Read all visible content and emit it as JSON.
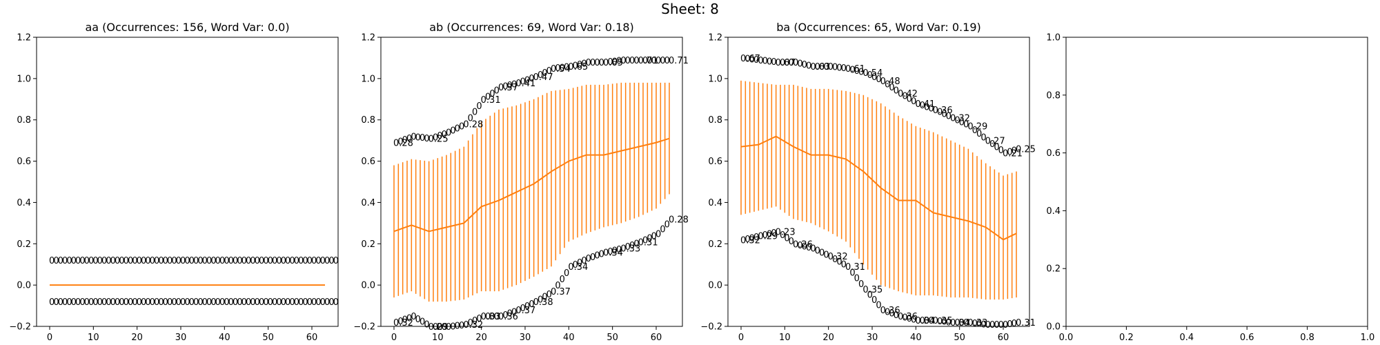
{
  "figure": {
    "title": "Sheet: 8"
  },
  "chart_data": [
    {
      "type": "line",
      "title": "aa (Occurrences: 156, Word Var: 0.0)",
      "xlim": [
        -3,
        66
      ],
      "ylim": [
        -0.2,
        1.2
      ],
      "x_ticks": [
        0,
        10,
        20,
        30,
        40,
        50,
        60
      ],
      "y_ticks": [
        -0.2,
        0.0,
        0.2,
        0.4,
        0.6,
        0.8,
        1.0,
        1.2
      ],
      "x_tick_labels": [
        "0",
        "10",
        "20",
        "30",
        "40",
        "50",
        "60"
      ],
      "y_tick_labels": [
        "−0.2",
        "0.0",
        "0.2",
        "0.4",
        "0.6",
        "0.8",
        "1.0",
        "1.2"
      ],
      "x": [
        0,
        63
      ],
      "mean": [
        0.0,
        0.0
      ],
      "lower": [
        0.0,
        0.0
      ],
      "upper": [
        0.0,
        0.0
      ],
      "upper_label_y": 0.12,
      "lower_label_y": -0.08,
      "upper_labels": {
        "0": "0",
        "63": "0"
      },
      "lower_labels": {
        "0": "0",
        "63": "0"
      }
    },
    {
      "type": "line",
      "title": "ab (Occurrences: 69, Word Var: 0.18)",
      "xlim": [
        -3,
        66
      ],
      "ylim": [
        -0.2,
        1.2
      ],
      "x_ticks": [
        0,
        10,
        20,
        30,
        40,
        50,
        60
      ],
      "y_ticks": [
        -0.2,
        0.0,
        0.2,
        0.4,
        0.6,
        0.8,
        1.0,
        1.2
      ],
      "x_tick_labels": [
        "0",
        "10",
        "20",
        "30",
        "40",
        "50",
        "60"
      ],
      "y_tick_labels": [
        "−0.2",
        "0.0",
        "0.2",
        "0.4",
        "0.6",
        "0.8",
        "1.0",
        "1.2"
      ],
      "x": [
        0,
        4,
        8,
        12,
        16,
        20,
        24,
        28,
        32,
        36,
        40,
        44,
        48,
        52,
        56,
        60,
        63
      ],
      "mean": [
        0.26,
        0.29,
        0.26,
        0.28,
        0.3,
        0.38,
        0.41,
        0.45,
        0.49,
        0.55,
        0.6,
        0.63,
        0.63,
        0.65,
        0.67,
        0.69,
        0.71
      ],
      "lower": [
        -0.06,
        -0.03,
        -0.08,
        -0.08,
        -0.07,
        -0.03,
        -0.03,
        0.0,
        0.04,
        0.09,
        0.21,
        0.25,
        0.28,
        0.3,
        0.33,
        0.37,
        0.44
      ],
      "upper": [
        0.58,
        0.61,
        0.6,
        0.63,
        0.67,
        0.79,
        0.85,
        0.87,
        0.9,
        0.94,
        0.95,
        0.97,
        0.97,
        0.98,
        0.98,
        0.98,
        0.98
      ],
      "upper_labels": {
        "0": "0.28",
        "8": "0.25",
        "16": "0.28",
        "20": "0.31",
        "24": "0.37",
        "28": "0.41",
        "32": "0.47",
        "36": "0.54",
        "40": "0.65",
        "48": "0.65",
        "56": "0.71",
        "63": "0.71"
      },
      "lower_labels": {
        "0": "0.32",
        "8": "0.29",
        "16": "0.32",
        "20": "0.33",
        "24": "0.36",
        "28": "0.37",
        "32": "0.38",
        "36": "0.37",
        "40": "0.34",
        "48": "0.34",
        "52": "0.33",
        "56": "0.31",
        "63": "0.28"
      }
    },
    {
      "type": "line",
      "title": "ba (Occurrences: 65, Word Var: 0.19)",
      "xlim": [
        -3,
        66
      ],
      "ylim": [
        -0.2,
        1.2
      ],
      "x_ticks": [
        0,
        10,
        20,
        30,
        40,
        50,
        60
      ],
      "y_ticks": [
        -0.2,
        0.0,
        0.2,
        0.4,
        0.6,
        0.8,
        1.0,
        1.2
      ],
      "x_tick_labels": [
        "0",
        "10",
        "20",
        "30",
        "40",
        "50",
        "60"
      ],
      "y_tick_labels": [
        "−0.2",
        "0.0",
        "0.2",
        "0.4",
        "0.6",
        "0.8",
        "1.0",
        "1.2"
      ],
      "x": [
        0,
        4,
        8,
        12,
        16,
        20,
        24,
        28,
        32,
        36,
        40,
        44,
        48,
        52,
        56,
        60,
        63
      ],
      "mean": [
        0.67,
        0.68,
        0.72,
        0.67,
        0.63,
        0.63,
        0.61,
        0.55,
        0.47,
        0.41,
        0.41,
        0.35,
        0.33,
        0.31,
        0.28,
        0.22,
        0.25
      ],
      "lower": [
        0.34,
        0.36,
        0.38,
        0.32,
        0.3,
        0.26,
        0.21,
        0.1,
        0.0,
        -0.03,
        -0.05,
        -0.05,
        -0.06,
        -0.06,
        -0.07,
        -0.07,
        -0.06
      ],
      "upper": [
        0.99,
        0.98,
        0.97,
        0.97,
        0.95,
        0.95,
        0.94,
        0.92,
        0.88,
        0.82,
        0.77,
        0.74,
        0.7,
        0.66,
        0.59,
        0.53,
        0.55
      ],
      "upper_labels": {
        "0": "0.67",
        "8": "0.67",
        "16": "0.63",
        "24": "0.61",
        "28": "0.54",
        "32": "0.48",
        "36": "0.42",
        "40": "0.41",
        "44": "0.36",
        "48": "0.32",
        "52": "0.29",
        "56": "0.27",
        "60": "0.21",
        "63": "0.25"
      },
      "lower_labels": {
        "0": "0.32",
        "4": "0.29",
        "8": "0.23",
        "12": "0.26",
        "20": "0.32",
        "24": "0.31",
        "28": "0.35",
        "32": "0.36",
        "36": "0.36",
        "40": "0.34",
        "44": "0.35",
        "48": "0.34",
        "52": "0.33",
        "63": "0.31"
      }
    },
    {
      "type": "line",
      "title": "",
      "xlim": [
        0,
        1
      ],
      "ylim": [
        0,
        1
      ],
      "x_ticks": [
        0.0,
        0.2,
        0.4,
        0.6,
        0.8,
        1.0
      ],
      "y_ticks": [
        0.0,
        0.2,
        0.4,
        0.6,
        0.8,
        1.0
      ],
      "x_tick_labels": [
        "0.0",
        "0.2",
        "0.4",
        "0.6",
        "0.8",
        "1.0"
      ],
      "y_tick_labels": [
        "0.0",
        "0.2",
        "0.4",
        "0.6",
        "0.8",
        "1.0"
      ],
      "empty": true
    }
  ],
  "colors": {
    "series": "#ff7f0e",
    "axes": "#000000",
    "text": "#000000"
  }
}
